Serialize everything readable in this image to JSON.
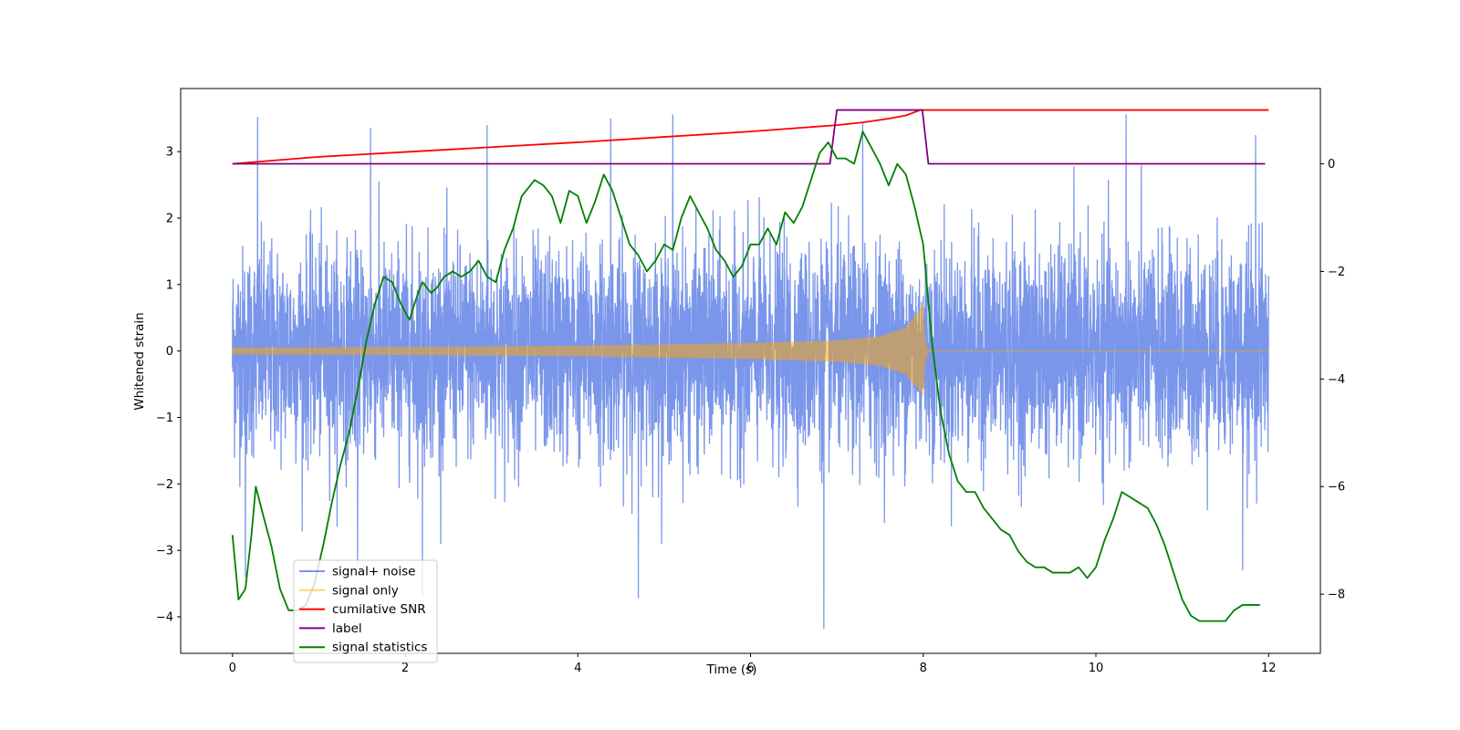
{
  "chart_data": {
    "type": "line",
    "title": "",
    "xlabel": "Time (s)",
    "ylabel": "Whitened strain",
    "ylabel_right": "",
    "xlim": [
      -0.6,
      12.6
    ],
    "ylim": [
      -4.55,
      3.95
    ],
    "ylim_right": [
      -9.1,
      1.4
    ],
    "x_ticks": [
      0,
      2,
      4,
      6,
      8,
      10,
      12
    ],
    "x_tick_labels": [
      "0",
      "2",
      "4",
      "6",
      "8",
      "10",
      "12"
    ],
    "y_ticks": [
      3,
      2,
      1,
      0,
      -1,
      -2,
      -3,
      -4
    ],
    "y_tick_labels": [
      "3",
      "2",
      "1",
      "0",
      "−1",
      "−2",
      "−3",
      "−4"
    ],
    "y_right_ticks": [
      0,
      -2,
      -4,
      -6,
      -8
    ],
    "y_right_tick_labels": [
      "0",
      "−2",
      "−4",
      "−6",
      "−8"
    ],
    "grid": false,
    "legend_position": "lower-left",
    "series": [
      {
        "name": "signal+ noise",
        "axis": "left",
        "color": "#4169e1",
        "opacity": 0.7,
        "kind": "noisy",
        "x_range": [
          0,
          12
        ],
        "typical_envelope": [
          -1.85,
          2.3
        ],
        "peak_values": [
          {
            "x": 0.29,
            "y": 3.52
          },
          {
            "x": 1.6,
            "y": 3.36
          },
          {
            "x": 2.95,
            "y": 3.4
          },
          {
            "x": 4.38,
            "y": 3.5
          },
          {
            "x": 5.1,
            "y": 3.56
          },
          {
            "x": 7.3,
            "y": 3.45
          },
          {
            "x": 10.35,
            "y": 3.56
          },
          {
            "x": 11.85,
            "y": 3.25
          },
          {
            "x": 0.15,
            "y": -3.4
          },
          {
            "x": 1.45,
            "y": -3.2
          },
          {
            "x": 2.2,
            "y": -3.7
          },
          {
            "x": 4.7,
            "y": -3.72
          },
          {
            "x": 6.85,
            "y": -4.18
          },
          {
            "x": 11.7,
            "y": -3.3
          }
        ]
      },
      {
        "name": "signal only",
        "axis": "left",
        "color": "#ffa500",
        "opacity": 0.5,
        "kind": "chirp",
        "x_range": [
          0,
          12
        ],
        "merger_time": 8.0,
        "amplitude_points": [
          [
            0,
            0.05
          ],
          [
            2,
            0.06
          ],
          [
            4,
            0.08
          ],
          [
            6,
            0.12
          ],
          [
            7,
            0.16
          ],
          [
            7.5,
            0.22
          ],
          [
            7.8,
            0.35
          ],
          [
            7.95,
            0.6
          ],
          [
            8.0,
            0.72
          ]
        ],
        "post_merger_value": 0.0
      },
      {
        "name": "cumilative SNR",
        "axis": "right",
        "color": "#ff0000",
        "opacity": 1,
        "x": [
          0,
          1,
          2,
          3,
          4,
          5,
          6,
          6.5,
          7,
          7.3,
          7.6,
          7.8,
          7.9,
          7.97,
          8.0,
          12.0
        ],
        "y": [
          0.0,
          0.13,
          0.22,
          0.31,
          0.4,
          0.5,
          0.6,
          0.66,
          0.72,
          0.77,
          0.84,
          0.9,
          0.96,
          1.0,
          1.0,
          1.0
        ]
      },
      {
        "name": "label",
        "axis": "right",
        "color": "#800080",
        "opacity": 1,
        "x": [
          0,
          6.92,
          7.0,
          7.99,
          8.06,
          11.96
        ],
        "y": [
          0,
          0,
          1,
          1,
          0,
          0
        ]
      },
      {
        "name": "signal statistics",
        "axis": "right",
        "color": "#008000",
        "opacity": 1,
        "x": [
          0,
          0.07,
          0.15,
          0.22,
          0.27,
          0.35,
          0.45,
          0.55,
          0.65,
          0.75,
          0.85,
          0.95,
          1.05,
          1.15,
          1.25,
          1.35,
          1.45,
          1.55,
          1.65,
          1.75,
          1.85,
          1.95,
          2.05,
          2.15,
          2.2,
          2.3,
          2.37,
          2.45,
          2.55,
          2.65,
          2.75,
          2.85,
          2.95,
          3.05,
          3.15,
          3.25,
          3.35,
          3.5,
          3.6,
          3.7,
          3.8,
          3.9,
          4.0,
          4.1,
          4.2,
          4.3,
          4.4,
          4.5,
          4.6,
          4.7,
          4.8,
          4.9,
          5.0,
          5.1,
          5.2,
          5.3,
          5.4,
          5.5,
          5.6,
          5.7,
          5.8,
          5.9,
          6.0,
          6.1,
          6.2,
          6.3,
          6.4,
          6.5,
          6.6,
          6.7,
          6.8,
          6.9,
          7.0,
          7.1,
          7.2,
          7.3,
          7.4,
          7.5,
          7.6,
          7.7,
          7.8,
          7.9,
          8.0,
          8.1,
          8.2,
          8.3,
          8.4,
          8.5,
          8.6,
          8.7,
          8.8,
          8.9,
          9.0,
          9.1,
          9.2,
          9.3,
          9.4,
          9.5,
          9.6,
          9.7,
          9.8,
          9.9,
          10.0,
          10.1,
          10.2,
          10.3,
          10.4,
          10.5,
          10.6,
          10.7,
          10.8,
          10.9,
          11.0,
          11.1,
          11.2,
          11.3,
          11.5,
          11.6,
          11.7,
          11.8,
          11.9
        ],
        "y": [
          -6.9,
          -8.1,
          -7.9,
          -6.9,
          -6.0,
          -6.5,
          -7.1,
          -7.9,
          -8.3,
          -8.3,
          -8.2,
          -7.8,
          -7.1,
          -6.3,
          -5.6,
          -5.0,
          -4.2,
          -3.3,
          -2.6,
          -2.1,
          -2.2,
          -2.6,
          -2.9,
          -2.4,
          -2.2,
          -2.4,
          -2.3,
          -2.1,
          -2.0,
          -2.1,
          -2.0,
          -1.8,
          -2.1,
          -2.2,
          -1.6,
          -1.2,
          -0.6,
          -0.3,
          -0.4,
          -0.6,
          -1.1,
          -0.5,
          -0.6,
          -1.1,
          -0.7,
          -0.2,
          -0.5,
          -1.0,
          -1.5,
          -1.7,
          -2.0,
          -1.8,
          -1.5,
          -1.6,
          -1.0,
          -0.6,
          -0.9,
          -1.2,
          -1.6,
          -1.8,
          -2.1,
          -1.9,
          -1.5,
          -1.5,
          -1.2,
          -1.5,
          -0.9,
          -1.1,
          -0.8,
          -0.3,
          0.2,
          0.4,
          0.1,
          0.1,
          0.0,
          0.6,
          0.3,
          0.0,
          -0.4,
          0.0,
          -0.2,
          -0.8,
          -1.5,
          -3.3,
          -4.6,
          -5.4,
          -5.9,
          -6.1,
          -6.1,
          -6.4,
          -6.6,
          -6.8,
          -6.9,
          -7.2,
          -7.4,
          -7.5,
          -7.5,
          -7.6,
          -7.6,
          -7.6,
          -7.5,
          -7.7,
          -7.5,
          -7.0,
          -6.6,
          -6.1,
          -6.2,
          -6.3,
          -6.4,
          -6.7,
          -7.1,
          -7.6,
          -8.1,
          -8.4,
          -8.5,
          -8.5,
          -8.5,
          -8.3,
          -8.2,
          -8.2,
          -8.2
        ]
      }
    ]
  }
}
